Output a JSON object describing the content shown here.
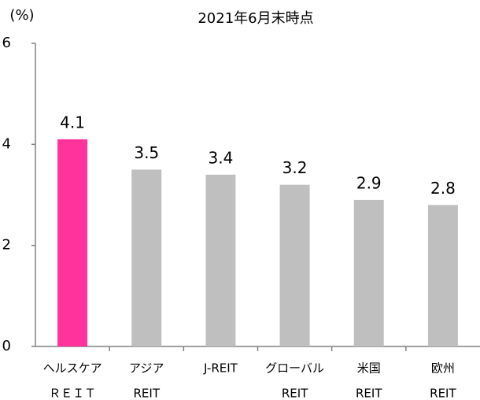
{
  "chart_data": {
    "type": "bar",
    "title": "2021年6月末時点",
    "y_label": "(%)",
    "categories": [
      [
        "ヘルスケア",
        "ＲＥＩＴ"
      ],
      [
        "アジア",
        "REIT"
      ],
      [
        "J-REIT"
      ],
      [
        "グローバル",
        "REIT"
      ],
      [
        "米国",
        "REIT"
      ],
      [
        "欧州",
        "REIT"
      ]
    ],
    "values": [
      4.1,
      3.5,
      3.4,
      3.2,
      2.9,
      2.8
    ],
    "colors": [
      "#ff3399",
      "#bfbfbf",
      "#bfbfbf",
      "#bfbfbf",
      "#bfbfbf",
      "#bfbfbf"
    ],
    "ylim": [
      0,
      6
    ],
    "yticks": [
      0,
      2,
      4,
      6
    ]
  }
}
